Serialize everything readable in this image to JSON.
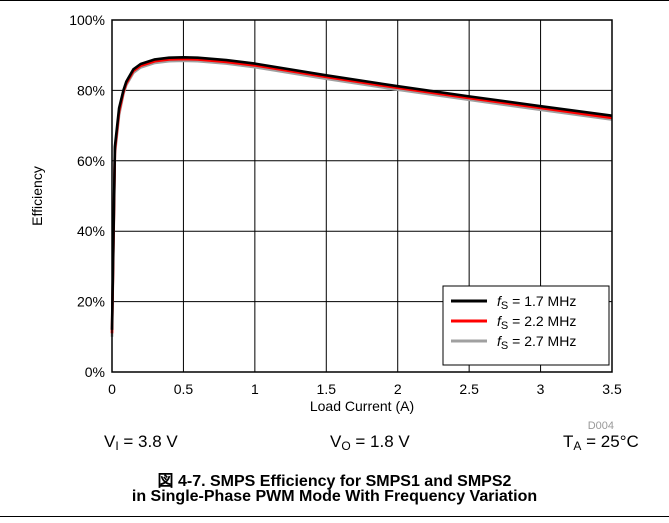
{
  "chart_data": {
    "type": "line",
    "xlabel": "Load Current (A)",
    "ylabel": "Efficiency",
    "xlim": [
      0,
      3.5
    ],
    "ylim": [
      0,
      100
    ],
    "x_ticks": [
      "0",
      "0.5",
      "1",
      "1.5",
      "2",
      "2.5",
      "3",
      "3.5"
    ],
    "y_ticks": [
      "0%",
      "20%",
      "40%",
      "60%",
      "80%",
      "100%"
    ],
    "grid": true,
    "legend_position": "bottom-right",
    "x": [
      0.0,
      0.02,
      0.05,
      0.08,
      0.1,
      0.15,
      0.2,
      0.3,
      0.4,
      0.5,
      0.6,
      0.8,
      1.0,
      1.5,
      2.0,
      2.5,
      3.0,
      3.5
    ],
    "series": [
      {
        "symbol": "f",
        "subscript": "S",
        "value": " = 1.7 MHz",
        "color": "#000000",
        "values": [
          12,
          64,
          75,
          80,
          82.5,
          86,
          87.5,
          88.8,
          89.3,
          89.4,
          89.3,
          88.6,
          87.6,
          84.3,
          81.2,
          78.3,
          75.5,
          72.8
        ]
      },
      {
        "symbol": "f",
        "subscript": "S",
        "value": " = 2.2 MHz",
        "color": "#ff0000",
        "values": [
          11,
          63,
          74,
          79.5,
          82,
          85.5,
          87,
          88.3,
          88.8,
          88.9,
          88.8,
          88.1,
          87.1,
          83.8,
          80.7,
          77.8,
          75.0,
          72.2
        ]
      },
      {
        "symbol": "f",
        "subscript": "S",
        "value": " = 2.7 MHz",
        "color": "#a0a0a0",
        "values": [
          10,
          62,
          73,
          79,
          81.5,
          85,
          86.5,
          87.8,
          88.3,
          88.4,
          88.3,
          87.6,
          86.6,
          83.3,
          80.2,
          77.3,
          74.5,
          71.7
        ]
      }
    ],
    "note": "D004"
  },
  "conditions": {
    "vi_main": "V",
    "vi_sub": "I",
    "vi_value": " = 3.8 V",
    "vo_main": "V",
    "vo_sub": "O",
    "vo_value": " = 1.8 V",
    "ta_main": "T",
    "ta_sub": "A",
    "ta_value": " = 25°C"
  },
  "caption": {
    "line1": "図 4-7. SMPS Efficiency for SMPS1 and SMPS2",
    "line2": "in Single-Phase PWM Mode With Frequency Variation"
  }
}
